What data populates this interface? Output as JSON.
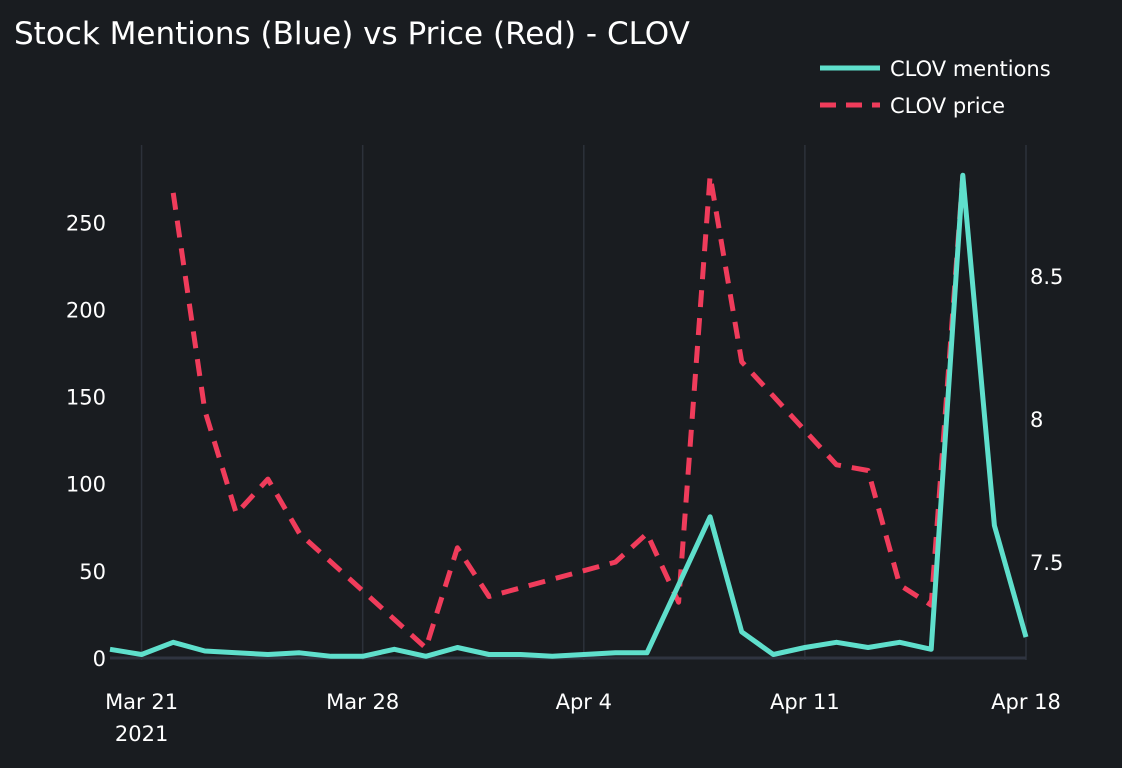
{
  "chart_data": {
    "type": "line",
    "title": "Stock Mentions (Blue) vs Price (Red) - CLOV",
    "xlabel": "",
    "ylabel": "",
    "x_ticks": [
      {
        "date": "2021-03-21",
        "label": "Mar 21",
        "sublabel": "2021"
      },
      {
        "date": "2021-03-28",
        "label": "Mar 28",
        "sublabel": ""
      },
      {
        "date": "2021-04-04",
        "label": "Apr 4",
        "sublabel": ""
      },
      {
        "date": "2021-04-11",
        "label": "Apr 11",
        "sublabel": ""
      },
      {
        "date": "2021-04-18",
        "label": "Apr 18",
        "sublabel": ""
      }
    ],
    "xlim": [
      "2021-03-20",
      "2021-04-18"
    ],
    "y_left": {
      "range": [
        0,
        280
      ],
      "ticks": [
        0,
        50,
        100,
        150,
        200,
        250
      ]
    },
    "y_right": {
      "range": [
        7.2,
        8.87
      ],
      "ticks": [
        7.5,
        8,
        8.5
      ],
      "tick_labels": [
        "7.5",
        "8",
        "8.5"
      ]
    },
    "grid": {
      "vertical": true,
      "horizontal": false
    },
    "legend": {
      "position": "top-right"
    },
    "series": [
      {
        "name": "CLOV mentions",
        "axis": "left",
        "style": "solid",
        "color": "#5fdfcc",
        "points": [
          [
            "2021-03-20",
            5
          ],
          [
            "2021-03-21",
            2
          ],
          [
            "2021-03-22",
            9
          ],
          [
            "2021-03-23",
            4
          ],
          [
            "2021-03-24",
            3
          ],
          [
            "2021-03-25",
            2
          ],
          [
            "2021-03-26",
            3
          ],
          [
            "2021-03-27",
            1
          ],
          [
            "2021-03-28",
            1
          ],
          [
            "2021-03-29",
            5
          ],
          [
            "2021-03-30",
            1
          ],
          [
            "2021-03-31",
            6
          ],
          [
            "2021-04-01",
            2
          ],
          [
            "2021-04-02",
            2
          ],
          [
            "2021-04-03",
            1
          ],
          [
            "2021-04-04",
            2
          ],
          [
            "2021-04-05",
            3
          ],
          [
            "2021-04-06",
            3
          ],
          [
            "2021-04-07",
            42
          ],
          [
            "2021-04-08",
            81
          ],
          [
            "2021-04-09",
            15
          ],
          [
            "2021-04-10",
            2
          ],
          [
            "2021-04-11",
            6
          ],
          [
            "2021-04-12",
            9
          ],
          [
            "2021-04-13",
            6
          ],
          [
            "2021-04-14",
            9
          ],
          [
            "2021-04-15",
            5
          ],
          [
            "2021-04-16",
            277
          ],
          [
            "2021-04-17",
            76
          ],
          [
            "2021-04-18",
            12
          ]
        ]
      },
      {
        "name": "CLOV price",
        "axis": "right",
        "style": "dashed",
        "color": "#f03c5b",
        "points": [
          [
            "2021-03-22",
            8.79
          ],
          [
            "2021-03-23",
            8.03
          ],
          [
            "2021-03-24",
            7.67
          ],
          [
            "2021-03-25",
            7.79
          ],
          [
            "2021-03-26",
            7.6
          ],
          [
            "2021-03-27",
            7.5
          ],
          [
            "2021-03-28",
            7.4
          ],
          [
            "2021-03-29",
            7.3
          ],
          [
            "2021-03-30",
            7.2
          ],
          [
            "2021-03-31",
            7.55
          ],
          [
            "2021-04-01",
            7.38
          ],
          [
            "2021-04-02",
            7.41
          ],
          [
            "2021-04-03",
            7.44
          ],
          [
            "2021-04-04",
            7.47
          ],
          [
            "2021-04-05",
            7.5
          ],
          [
            "2021-04-06",
            7.6
          ],
          [
            "2021-04-07",
            7.36
          ],
          [
            "2021-04-08",
            8.85
          ],
          [
            "2021-04-09",
            8.2
          ],
          [
            "2021-04-10",
            8.08
          ],
          [
            "2021-04-11",
            7.96
          ],
          [
            "2021-04-12",
            7.84
          ],
          [
            "2021-04-13",
            7.82
          ],
          [
            "2021-04-14",
            7.42
          ],
          [
            "2021-04-15",
            7.35
          ],
          [
            "2021-04-16",
            8.85
          ]
        ]
      }
    ]
  }
}
